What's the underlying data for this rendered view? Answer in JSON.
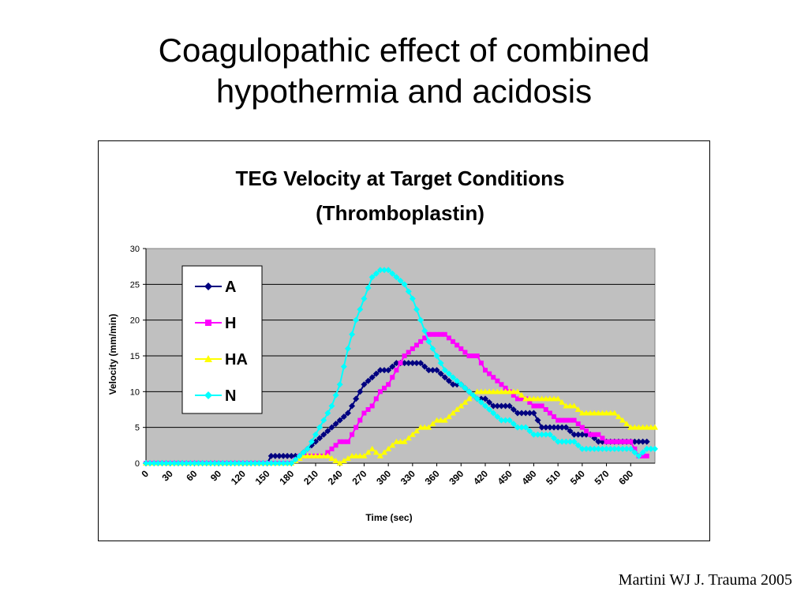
{
  "slide": {
    "title_line1": "Coagulopathic effect of combined",
    "title_line2": "hypothermia and acidosis",
    "citation": "Martini WJ J. Trauma 2005"
  },
  "chart_data": {
    "type": "line",
    "title_line1": "TEG Velocity at Target Conditions",
    "title_line2": "(Thromboplastin)",
    "xlabel": "Time (sec)",
    "ylabel": "Velocity (mm/min)",
    "xlim": [
      0,
      630
    ],
    "ylim": [
      0,
      30
    ],
    "x_ticks": [
      0,
      30,
      60,
      90,
      120,
      150,
      180,
      210,
      240,
      270,
      300,
      330,
      360,
      390,
      420,
      450,
      480,
      510,
      540,
      570,
      600
    ],
    "y_ticks": [
      0,
      5,
      10,
      15,
      20,
      25,
      30
    ],
    "grid": "horizontal",
    "background": "#c0c0c0",
    "legend_position": "top-left inside plot",
    "series": [
      {
        "name": "A",
        "color": "#000080",
        "marker": "diamond",
        "points": [
          [
            0,
            0
          ],
          [
            150,
            0
          ],
          [
            155,
            1
          ],
          [
            170,
            1
          ],
          [
            180,
            1
          ],
          [
            190,
            1
          ],
          [
            200,
            2
          ],
          [
            210,
            3
          ],
          [
            220,
            4
          ],
          [
            230,
            5
          ],
          [
            240,
            6
          ],
          [
            250,
            7
          ],
          [
            260,
            9
          ],
          [
            270,
            11
          ],
          [
            280,
            12
          ],
          [
            290,
            13
          ],
          [
            300,
            13
          ],
          [
            310,
            14
          ],
          [
            320,
            14
          ],
          [
            330,
            14
          ],
          [
            340,
            14
          ],
          [
            350,
            13
          ],
          [
            360,
            13
          ],
          [
            370,
            12
          ],
          [
            380,
            11
          ],
          [
            390,
            11
          ],
          [
            400,
            10
          ],
          [
            410,
            9
          ],
          [
            420,
            9
          ],
          [
            430,
            8
          ],
          [
            440,
            8
          ],
          [
            450,
            8
          ],
          [
            460,
            7
          ],
          [
            470,
            7
          ],
          [
            480,
            7
          ],
          [
            490,
            5
          ],
          [
            500,
            5
          ],
          [
            510,
            5
          ],
          [
            520,
            5
          ],
          [
            530,
            4
          ],
          [
            540,
            4
          ],
          [
            550,
            4
          ],
          [
            560,
            3
          ],
          [
            570,
            3
          ],
          [
            580,
            3
          ],
          [
            590,
            3
          ],
          [
            600,
            3
          ],
          [
            610,
            3
          ],
          [
            620,
            3
          ]
        ]
      },
      {
        "name": "H",
        "color": "#ff00ff",
        "marker": "square",
        "points": [
          [
            0,
            0
          ],
          [
            180,
            0
          ],
          [
            190,
            1
          ],
          [
            200,
            1
          ],
          [
            210,
            1
          ],
          [
            220,
            1
          ],
          [
            230,
            2
          ],
          [
            240,
            3
          ],
          [
            250,
            3
          ],
          [
            260,
            5
          ],
          [
            270,
            7
          ],
          [
            280,
            8
          ],
          [
            290,
            10
          ],
          [
            300,
            11
          ],
          [
            310,
            13
          ],
          [
            320,
            15
          ],
          [
            330,
            16
          ],
          [
            340,
            17
          ],
          [
            350,
            18
          ],
          [
            360,
            18
          ],
          [
            370,
            18
          ],
          [
            380,
            17
          ],
          [
            390,
            16
          ],
          [
            400,
            15
          ],
          [
            410,
            15
          ],
          [
            420,
            13
          ],
          [
            430,
            12
          ],
          [
            440,
            11
          ],
          [
            450,
            10
          ],
          [
            460,
            9
          ],
          [
            470,
            9
          ],
          [
            480,
            8
          ],
          [
            490,
            8
          ],
          [
            500,
            7
          ],
          [
            510,
            6
          ],
          [
            520,
            6
          ],
          [
            530,
            6
          ],
          [
            540,
            5
          ],
          [
            550,
            4
          ],
          [
            560,
            4
          ],
          [
            570,
            3
          ],
          [
            580,
            3
          ],
          [
            590,
            3
          ],
          [
            600,
            3
          ],
          [
            610,
            1
          ],
          [
            620,
            1
          ]
        ]
      },
      {
        "name": "HA",
        "color": "#ffff00",
        "marker": "triangle",
        "points": [
          [
            0,
            0
          ],
          [
            180,
            0
          ],
          [
            195,
            1
          ],
          [
            210,
            1
          ],
          [
            225,
            1
          ],
          [
            240,
            0
          ],
          [
            255,
            1
          ],
          [
            270,
            1
          ],
          [
            280,
            2
          ],
          [
            290,
            1
          ],
          [
            300,
            2
          ],
          [
            310,
            3
          ],
          [
            320,
            3
          ],
          [
            330,
            4
          ],
          [
            340,
            5
          ],
          [
            350,
            5
          ],
          [
            360,
            6
          ],
          [
            370,
            6
          ],
          [
            380,
            7
          ],
          [
            390,
            8
          ],
          [
            400,
            9
          ],
          [
            410,
            10
          ],
          [
            420,
            10
          ],
          [
            430,
            10
          ],
          [
            440,
            10
          ],
          [
            450,
            10
          ],
          [
            460,
            10
          ],
          [
            470,
            9
          ],
          [
            480,
            9
          ],
          [
            490,
            9
          ],
          [
            500,
            9
          ],
          [
            510,
            9
          ],
          [
            520,
            8
          ],
          [
            530,
            8
          ],
          [
            540,
            7
          ],
          [
            550,
            7
          ],
          [
            560,
            7
          ],
          [
            570,
            7
          ],
          [
            580,
            7
          ],
          [
            590,
            6
          ],
          [
            600,
            5
          ],
          [
            610,
            5
          ],
          [
            620,
            5
          ],
          [
            630,
            5
          ]
        ]
      },
      {
        "name": "N",
        "color": "#00ffff",
        "marker": "diamond",
        "points": [
          [
            0,
            0
          ],
          [
            180,
            0
          ],
          [
            190,
            1
          ],
          [
            200,
            2
          ],
          [
            210,
            4
          ],
          [
            220,
            6
          ],
          [
            230,
            8
          ],
          [
            240,
            11
          ],
          [
            250,
            16
          ],
          [
            260,
            20
          ],
          [
            270,
            23
          ],
          [
            280,
            26
          ],
          [
            290,
            27
          ],
          [
            300,
            27
          ],
          [
            310,
            26
          ],
          [
            320,
            25
          ],
          [
            330,
            23
          ],
          [
            340,
            20
          ],
          [
            350,
            17
          ],
          [
            360,
            15
          ],
          [
            370,
            13
          ],
          [
            380,
            12
          ],
          [
            390,
            11
          ],
          [
            400,
            10
          ],
          [
            410,
            9
          ],
          [
            420,
            8
          ],
          [
            430,
            7
          ],
          [
            440,
            6
          ],
          [
            450,
            6
          ],
          [
            460,
            5
          ],
          [
            470,
            5
          ],
          [
            480,
            4
          ],
          [
            490,
            4
          ],
          [
            500,
            4
          ],
          [
            510,
            3
          ],
          [
            520,
            3
          ],
          [
            530,
            3
          ],
          [
            540,
            2
          ],
          [
            550,
            2
          ],
          [
            560,
            2
          ],
          [
            570,
            2
          ],
          [
            580,
            2
          ],
          [
            590,
            2
          ],
          [
            600,
            2
          ],
          [
            610,
            1
          ],
          [
            620,
            2
          ],
          [
            630,
            2
          ]
        ]
      }
    ]
  }
}
